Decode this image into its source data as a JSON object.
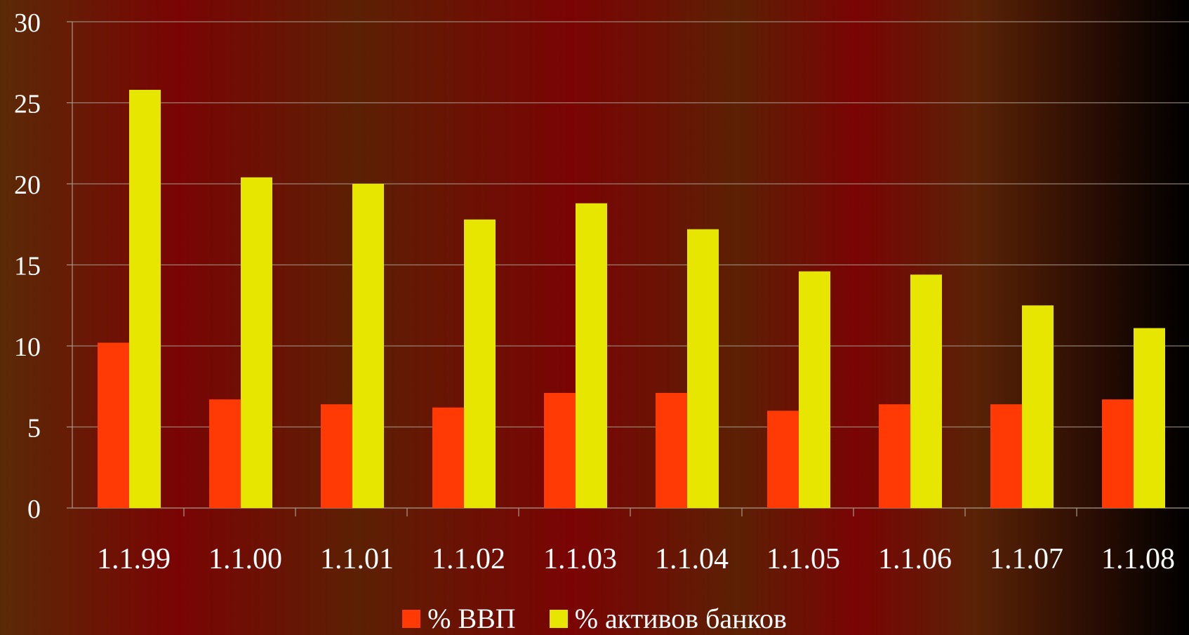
{
  "chart_data": {
    "type": "bar",
    "categories": [
      "1.1.99",
      "1.1.00",
      "1.1.01",
      "1.1.02",
      "1.1.03",
      "1.1.04",
      "1.1.05",
      "1.1.06",
      "1.1.07",
      "1.1.08"
    ],
    "series": [
      {
        "name": "% ВВП",
        "color": "#ff3a05",
        "values": [
          10.2,
          6.7,
          6.4,
          6.2,
          7.1,
          7.1,
          6.0,
          6.4,
          6.4,
          6.7
        ]
      },
      {
        "name": "% активов банков",
        "color": "#e6e600",
        "values": [
          25.8,
          20.4,
          20.0,
          17.8,
          18.8,
          17.2,
          14.6,
          14.4,
          12.5,
          11.1
        ]
      }
    ],
    "ylim": [
      0,
      30
    ],
    "yticks": [
      "0",
      "5",
      "10",
      "15",
      "20",
      "25",
      "30"
    ],
    "grid": true,
    "legend_position": "bottom"
  }
}
